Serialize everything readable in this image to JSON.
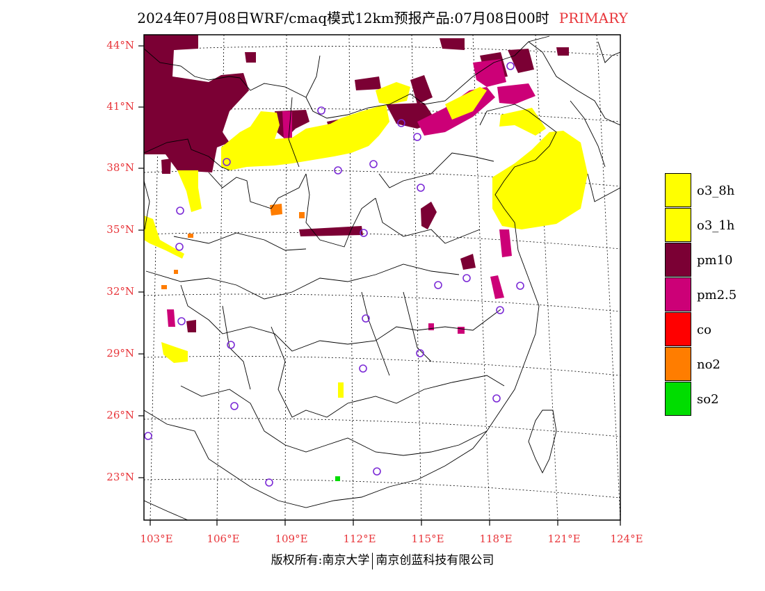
{
  "title": {
    "text": "2024年07月08日WRF/cmaq模式12km预报产品:07月08日00时",
    "tag": "PRIMARY"
  },
  "colors": {
    "o3_8h": "#ffff00",
    "o3_1h": "#ffff00",
    "pm10": "#7b0034",
    "pm25": "#cc0077",
    "co": "#ff0000",
    "no2": "#ff7d00",
    "so2": "#00dd00",
    "station": "#7b2ad6",
    "tick": "#e8353a"
  },
  "axes": {
    "lat_labels": [
      "44°N",
      "41°N",
      "38°N",
      "35°N",
      "32°N",
      "29°N",
      "26°N",
      "23°N"
    ],
    "lon_labels": [
      "103°E",
      "106°E",
      "109°E",
      "112°E",
      "115°E",
      "118°E",
      "121°E",
      "124°E"
    ]
  },
  "legend": [
    {
      "label": "o3_8h",
      "color": "#ffff00"
    },
    {
      "label": "o3_1h",
      "color": "#ffff00"
    },
    {
      "label": "pm10",
      "color": "#7b0034"
    },
    {
      "label": "pm2.5",
      "color": "#cc0077"
    },
    {
      "label": "co",
      "color": "#ff0000"
    },
    {
      "label": "no2",
      "color": "#ff7d00"
    },
    {
      "label": "so2",
      "color": "#00dd00"
    }
  ],
  "footer": {
    "left": "版权所有:南京大学",
    "right": "南京创蓝科技有限公司"
  }
}
